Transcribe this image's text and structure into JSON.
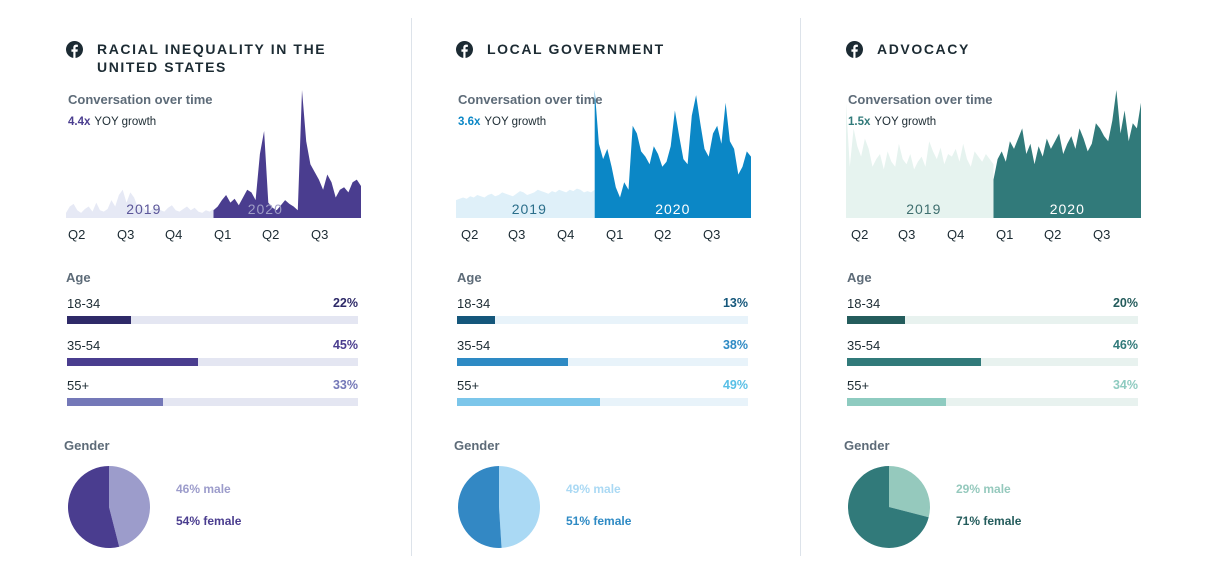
{
  "chart_data": [
    {
      "type": "area",
      "title": "RACIAL INEQUALITY IN THE UNITED STATES",
      "subtitle": "Conversation over time",
      "growth": {
        "multiplier": "4.4x",
        "label": "YOY growth"
      },
      "x_tick_labels": [
        "Q2",
        "Q3",
        "Q4",
        "Q1",
        "Q2",
        "Q3"
      ],
      "year_labels": [
        "2019",
        "2020"
      ],
      "series": [
        {
          "name": "2019",
          "values": [
            4,
            9,
            11,
            6,
            4,
            7,
            9,
            5,
            12,
            6,
            5,
            7,
            14,
            9,
            18,
            22,
            12,
            20,
            16,
            8,
            10,
            6,
            5,
            7,
            9,
            6,
            5,
            8,
            10,
            6,
            5,
            7,
            9,
            6,
            8,
            5,
            4,
            6,
            5,
            7
          ]
        },
        {
          "name": "2020",
          "values": [
            6,
            9,
            14,
            18,
            12,
            15,
            10,
            16,
            22,
            20,
            14,
            50,
            68,
            12,
            8,
            6,
            10,
            14,
            11,
            9,
            6,
            100,
            60,
            42,
            36,
            30,
            22,
            34,
            28,
            16,
            22,
            24,
            20,
            28,
            30,
            25
          ]
        }
      ],
      "age_title": "Age",
      "age": [
        {
          "label": "18-34",
          "percent": 22,
          "text": "22%"
        },
        {
          "label": "35-54",
          "percent": 45,
          "text": "45%"
        },
        {
          "label": "55+",
          "percent": 33,
          "text": "33%"
        }
      ],
      "gender_title": "Gender",
      "gender": [
        {
          "label": "46% male",
          "percent": 46
        },
        {
          "label": "54% female",
          "percent": 54
        }
      ],
      "colors": {
        "old": "#e6e9f5",
        "new": "#4a3d8f",
        "title": "#4a3d8f",
        "year2020": "#9e9dc6",
        "age": [
          "#2e2a68",
          "#4a3d8f",
          "#7478b8"
        ],
        "ageText": [
          "#2e2a68",
          "#4a3d8f",
          "#7478b8"
        ],
        "track": "#e4e6f2",
        "male": "#9c9ccb",
        "female": "#4a3d8f",
        "maleText": "#9c9ccb",
        "femaleText": "#4a3d8f"
      }
    },
    {
      "type": "area",
      "title": "LOCAL GOVERNMENT",
      "subtitle": "Conversation over time",
      "growth": {
        "multiplier": "3.6x",
        "label": "YOY growth"
      },
      "x_tick_labels": [
        "Q2",
        "Q3",
        "Q4",
        "Q1",
        "Q2",
        "Q3"
      ],
      "year_labels": [
        "2019",
        "2020"
      ],
      "series": [
        {
          "name": "2019",
          "values": [
            14,
            15,
            16,
            15,
            17,
            16,
            18,
            17,
            16,
            18,
            19,
            17,
            18,
            20,
            19,
            18,
            17,
            19,
            21,
            20,
            18,
            19,
            20,
            22,
            21,
            20,
            19,
            21,
            20,
            22,
            21,
            20,
            22,
            21,
            23,
            22,
            20,
            21,
            20,
            22
          ]
        },
        {
          "name": "2020",
          "values": [
            100,
            58,
            46,
            54,
            40,
            24,
            16,
            28,
            22,
            72,
            66,
            52,
            48,
            42,
            56,
            50,
            40,
            44,
            56,
            84,
            64,
            46,
            42,
            80,
            96,
            74,
            54,
            48,
            66,
            72,
            58,
            90,
            60,
            54,
            34,
            40,
            52,
            48
          ]
        }
      ],
      "age_title": "Age",
      "age": [
        {
          "label": "18-34",
          "percent": 13,
          "text": "13%"
        },
        {
          "label": "35-54",
          "percent": 38,
          "text": "38%"
        },
        {
          "label": "55+",
          "percent": 49,
          "text": "49%"
        }
      ],
      "gender_title": "Gender",
      "gender": [
        {
          "label": "49% male",
          "percent": 49
        },
        {
          "label": "51% female",
          "percent": 51
        }
      ],
      "colors": {
        "old": "#dff0f9",
        "new": "#0b87c6",
        "title": "#0b87c6",
        "year2020": "#ffffff",
        "age": [
          "#15577b",
          "#2e8ac4",
          "#7cc6ea"
        ],
        "ageText": [
          "#15577b",
          "#2e8ac4",
          "#58bfe6"
        ],
        "track": "#e8f3fa",
        "male": "#aad9f4",
        "female": "#3388c4",
        "maleText": "#aad9f4",
        "femaleText": "#2e8ac4"
      }
    },
    {
      "type": "area",
      "title": "ADVOCACY",
      "subtitle": "Conversation over time",
      "growth": {
        "multiplier": "1.5x",
        "label": "YOY growth"
      },
      "x_tick_labels": [
        "Q2",
        "Q3",
        "Q4",
        "Q1",
        "Q2",
        "Q3"
      ],
      "year_labels": [
        "2019",
        "2020"
      ],
      "series": [
        {
          "name": "2019",
          "values": [
            90,
            40,
            70,
            56,
            48,
            62,
            54,
            40,
            46,
            50,
            38,
            52,
            44,
            40,
            58,
            46,
            42,
            50,
            38,
            44,
            48,
            40,
            60,
            52,
            46,
            55,
            42,
            50,
            48,
            54,
            44,
            58,
            46,
            40,
            52,
            48,
            44,
            50,
            46,
            42
          ]
        },
        {
          "name": "2020",
          "values": [
            30,
            46,
            52,
            44,
            60,
            54,
            62,
            70,
            50,
            58,
            42,
            56,
            48,
            62,
            54,
            60,
            66,
            50,
            58,
            64,
            54,
            70,
            62,
            52,
            58,
            74,
            70,
            64,
            60,
            76,
            100,
            66,
            84,
            60,
            74,
            70,
            90
          ]
        }
      ],
      "age_title": "Age",
      "age": [
        {
          "label": "18-34",
          "percent": 20,
          "text": "20%"
        },
        {
          "label": "35-54",
          "percent": 46,
          "text": "46%"
        },
        {
          "label": "55+",
          "percent": 34,
          "text": "34%"
        }
      ],
      "gender_title": "Gender",
      "gender": [
        {
          "label": "29% male",
          "percent": 29
        },
        {
          "label": "71% female",
          "percent": 71
        }
      ],
      "colors": {
        "old": "#e6f3ef",
        "new": "#317a7a",
        "title": "#317a7a",
        "year2020": "#ffffff",
        "age": [
          "#245c5c",
          "#317a7a",
          "#8ecbc0"
        ],
        "ageText": [
          "#245c5c",
          "#317a7a",
          "#8ecbc0"
        ],
        "track": "#e8f2ef",
        "male": "#95c9bd",
        "female": "#317a7a",
        "maleText": "#95c9bd",
        "femaleText": "#245c5c"
      }
    }
  ]
}
